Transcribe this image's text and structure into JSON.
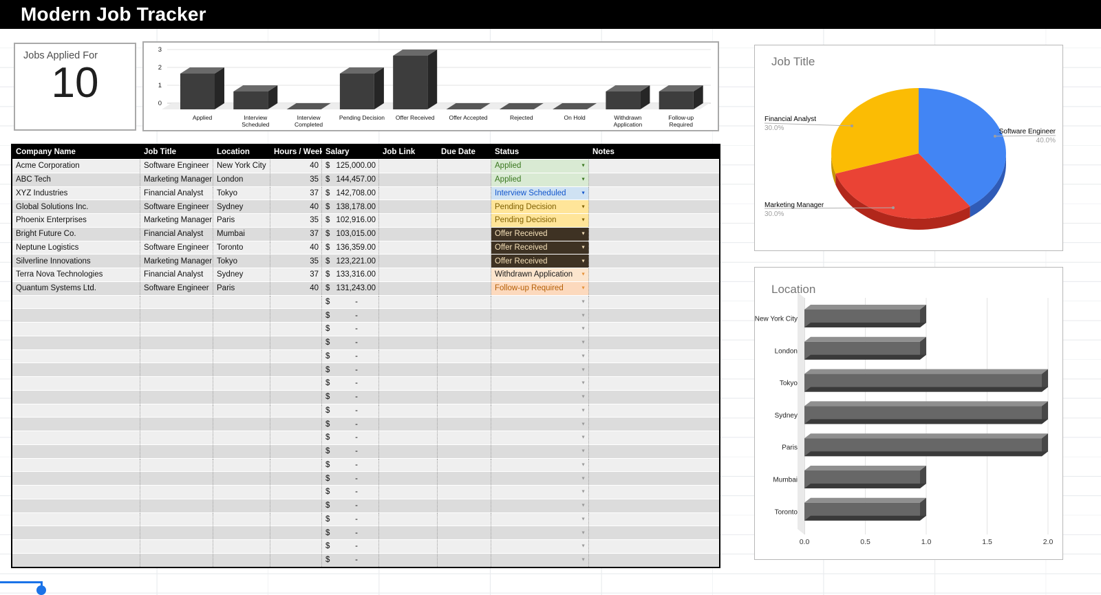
{
  "title_bar": {
    "title": "Modern Job Tracker"
  },
  "summary_card": {
    "label": "Jobs Applied For",
    "value": "10"
  },
  "icons": {
    "dropdown_arrow": "▼"
  },
  "table": {
    "columns": [
      "Company Name",
      "Job Title",
      "Location",
      "Hours / Week",
      "Salary",
      "Job Link",
      "Due Date",
      "Status",
      "Notes"
    ],
    "currency_symbol": "$",
    "empty_salary": "-",
    "empty_rows": 20,
    "rows": [
      {
        "company": "Acme Corporation",
        "job_title": "Software Engineer",
        "location": "New York City",
        "hours": "40",
        "salary": "125,000.00",
        "status": "Applied",
        "status_key": "applied"
      },
      {
        "company": "ABC Tech",
        "job_title": "Marketing Manager",
        "location": "London",
        "hours": "35",
        "salary": "144,457.00",
        "status": "Applied",
        "status_key": "applied"
      },
      {
        "company": "XYZ Industries",
        "job_title": "Financial Analyst",
        "location": "Tokyo",
        "hours": "37",
        "salary": "142,708.00",
        "status": "Interview Scheduled",
        "status_key": "interview_scheduled"
      },
      {
        "company": "Global Solutions Inc.",
        "job_title": "Software Engineer",
        "location": "Sydney",
        "hours": "40",
        "salary": "138,178.00",
        "status": "Pending Decision",
        "status_key": "pending_decision"
      },
      {
        "company": "Phoenix Enterprises",
        "job_title": "Marketing Manager",
        "location": "Paris",
        "hours": "35",
        "salary": "102,916.00",
        "status": "Pending Decision",
        "status_key": "pending_decision"
      },
      {
        "company": "Bright Future Co.",
        "job_title": "Financial Analyst",
        "location": "Mumbai",
        "hours": "37",
        "salary": "103,015.00",
        "status": "Offer Received",
        "status_key": "offer_received"
      },
      {
        "company": "Neptune Logistics",
        "job_title": "Software Engineer",
        "location": "Toronto",
        "hours": "40",
        "salary": "136,359.00",
        "status": "Offer Received",
        "status_key": "offer_received"
      },
      {
        "company": "Silverline Innovations",
        "job_title": "Marketing Manager",
        "location": "Tokyo",
        "hours": "35",
        "salary": "123,221.00",
        "status": "Offer Received",
        "status_key": "offer_received"
      },
      {
        "company": "Terra Nova Technologies",
        "job_title": "Financial Analyst",
        "location": "Sydney",
        "hours": "37",
        "salary": "133,316.00",
        "status": "Withdrawn Application",
        "status_key": "withdrawn_application"
      },
      {
        "company": "Quantum Systems Ltd.",
        "job_title": "Software Engineer",
        "location": "Paris",
        "hours": "40",
        "salary": "131,243.00",
        "status": "Follow-up Required",
        "status_key": "follow_up_required"
      }
    ]
  },
  "status_styles": {
    "applied": {
      "bg": "#d9ead3",
      "text": "#38761d",
      "arrow": "#38761d"
    },
    "interview_scheduled": {
      "bg": "#cfe2f3",
      "text": "#1155cc",
      "arrow": "#1155cc"
    },
    "pending_decision": {
      "bg": "#ffe599",
      "text": "#7f6000",
      "arrow": "#7f6000"
    },
    "offer_received": {
      "bg": "#3e3223",
      "text": "#f5e0b8",
      "arrow": "#f5e0b8"
    },
    "withdrawn_application": {
      "bg": "#fce5cd",
      "text": "#1a1a1a",
      "arrow": "#e69138"
    },
    "follow_up_required": {
      "bg": "#fcd9bd",
      "text": "#b45f06",
      "arrow": "#e69138"
    },
    "empty": {
      "bg": "",
      "text": "#666666",
      "arrow": "#9a9a9a"
    }
  },
  "chart_data": [
    {
      "type": "bar",
      "name": "status-count-3d-column-chart",
      "title": "",
      "categories": [
        "Applied",
        "Interview Scheduled",
        "Interview Completed",
        "Pending Decision",
        "Offer Received",
        "Offer Accepted",
        "Rejected",
        "On Hold",
        "Withdrawn Application",
        "Follow-up Required"
      ],
      "category_lines": [
        [
          "Applied"
        ],
        [
          "Interview",
          "Scheduled"
        ],
        [
          "Interview",
          "Completed"
        ],
        [
          "Pending Decision"
        ],
        [
          "Offer Received"
        ],
        [
          "Offer Accepted"
        ],
        [
          "Rejected"
        ],
        [
          "On Hold"
        ],
        [
          "Withdrawn",
          "Application"
        ],
        [
          "Follow-up",
          "Required"
        ]
      ],
      "values": [
        2,
        1,
        0,
        2,
        3,
        0,
        0,
        0,
        1,
        1
      ],
      "ylim": [
        0,
        3
      ],
      "yticks": [
        0,
        1,
        2,
        3
      ],
      "grid": true,
      "bar_front_color": "#3d3d3d",
      "bar_top_color": "#6a6a6a",
      "bar_side_color": "#262626",
      "zero_bar_color": "#575757"
    },
    {
      "type": "pie",
      "name": "job-title-3d-pie-chart",
      "title": "Job Title",
      "start": "top",
      "direction": "clockwise",
      "slices": [
        {
          "label": "Software Engineer",
          "value": 40,
          "percent_label": "40.0%",
          "color": "#4285f4",
          "side_color": "#2f5bb7"
        },
        {
          "label": "Marketing Manager",
          "value": 30,
          "percent_label": "30.0%",
          "color": "#ea4335",
          "side_color": "#b1271b"
        },
        {
          "label": "Financial Analyst",
          "value": 30,
          "percent_label": "30.0%",
          "color": "#fbbc04",
          "side_color": "#c79504"
        }
      ],
      "label_color": "#000000",
      "percent_color": "#9e9e9e"
    },
    {
      "type": "bar-horizontal",
      "name": "location-3d-bar-chart",
      "title": "Location",
      "categories": [
        "New York City",
        "London",
        "Tokyo",
        "Sydney",
        "Paris",
        "Mumbai",
        "Toronto"
      ],
      "values": [
        1,
        1,
        2,
        2,
        2,
        1,
        1
      ],
      "xticks": [
        "0.0",
        "0.5",
        "1.0",
        "1.5",
        "2.0"
      ],
      "xlim": [
        0,
        2
      ],
      "grid": true,
      "bar_front_color": "#676767",
      "bar_top_color": "#8f8f8f",
      "bar_cap_color": "#484848",
      "bar_bottom_color": "#3a3a3a"
    }
  ]
}
